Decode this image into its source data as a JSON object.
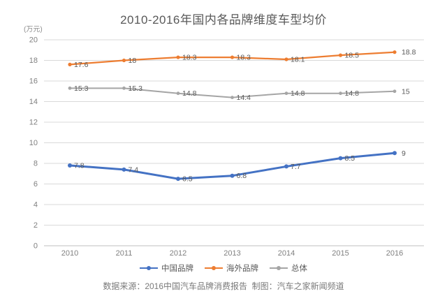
{
  "page": {
    "title": "2010-2016年国内各品牌维度车型均价",
    "unit_label": "(万元)",
    "footer": "数据来源：2016中国汽车品牌消费报告  制图：汽车之家新闻频道"
  },
  "chart_data": {
    "type": "line",
    "title": "2010-2016年国内各品牌维度车型均价",
    "ylabel": "万元",
    "categories": [
      "2010",
      "2011",
      "2012",
      "2013",
      "2014",
      "2015",
      "2016"
    ],
    "series": [
      {
        "name": "中国品牌",
        "color": "#4472c4",
        "values": [
          7.8,
          7.4,
          6.5,
          6.8,
          7.7,
          8.5,
          9
        ]
      },
      {
        "name": "海外品牌",
        "color": "#ed7d31",
        "values": [
          17.6,
          18,
          18.3,
          18.3,
          18.1,
          18.5,
          18.8
        ]
      },
      {
        "name": "总体",
        "color": "#a5a5a5",
        "values": [
          15.3,
          15.3,
          14.8,
          14.4,
          14.8,
          14.8,
          15
        ]
      }
    ],
    "ylim": [
      0,
      20
    ],
    "ytick_step": 2,
    "grid": "horizontal",
    "legend_position": "bottom",
    "data_labels": true,
    "colors": {
      "grid": "#d9d9d9",
      "axis": "#bfbfbf",
      "tick_text": "#808080",
      "label_text": "#595959"
    }
  }
}
